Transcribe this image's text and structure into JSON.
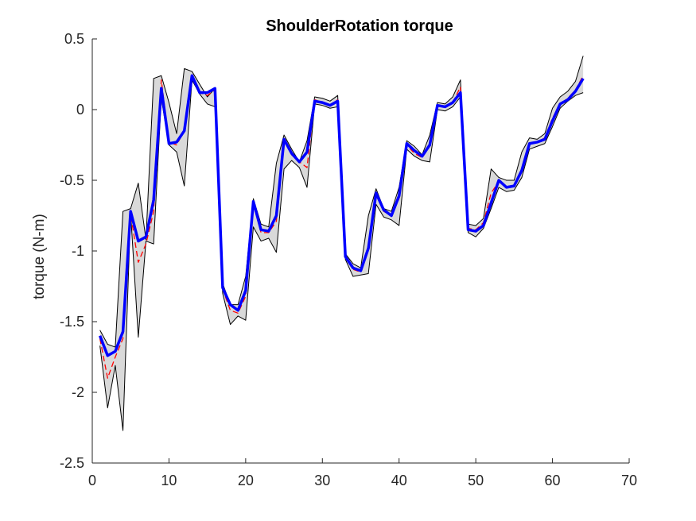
{
  "chart_data": {
    "type": "line",
    "title": "ShoulderRotation torque",
    "xlabel": "",
    "ylabel": "torque (N-m)",
    "xlim": [
      0,
      70
    ],
    "ylim": [
      -2.5,
      0.5
    ],
    "xticks": [
      "0",
      "10",
      "20",
      "30",
      "40",
      "50",
      "60",
      "70"
    ],
    "yticks": [
      "0.5",
      "0",
      "-0.5",
      "-1",
      "-1.5",
      "-2",
      "-2.5"
    ],
    "grid": false,
    "legend": "none",
    "x": [
      1,
      2,
      3,
      4,
      5,
      6,
      7,
      8,
      9,
      10,
      11,
      12,
      13,
      14,
      15,
      16,
      17,
      18,
      19,
      20,
      21,
      22,
      23,
      24,
      25,
      26,
      27,
      28,
      29,
      30,
      31,
      32,
      33,
      34,
      35,
      36,
      37,
      38,
      39,
      40,
      41,
      42,
      43,
      44,
      45,
      46,
      47,
      48,
      49,
      50,
      51,
      52,
      53,
      54,
      55,
      56,
      57,
      58,
      59,
      60,
      61,
      62,
      63,
      64
    ],
    "series": [
      {
        "role": "band-upper",
        "color": "#000000",
        "fill": "#d9d9d9",
        "values": [
          -1.56,
          -1.66,
          -1.68,
          -0.72,
          -0.7,
          -0.52,
          -0.92,
          0.22,
          0.24,
          0.05,
          -0.17,
          0.29,
          0.27,
          0.18,
          0.09,
          0.15,
          -1.23,
          -1.38,
          -1.38,
          -1.18,
          -0.63,
          -0.81,
          -0.83,
          -0.38,
          -0.18,
          -0.28,
          -0.37,
          -0.22,
          0.09,
          0.08,
          0.06,
          0.1,
          -1.02,
          -1.09,
          -1.12,
          -0.75,
          -0.56,
          -0.7,
          -0.72,
          -0.55,
          -0.22,
          -0.26,
          -0.32,
          -0.18,
          0.05,
          0.04,
          0.09,
          0.21,
          -0.81,
          -0.82,
          -0.77,
          -0.42,
          -0.48,
          -0.5,
          -0.5,
          -0.3,
          -0.2,
          -0.21,
          -0.17,
          0.01,
          0.09,
          0.13,
          0.2,
          0.38
        ]
      },
      {
        "role": "band-lower",
        "color": "#000000",
        "values": [
          -1.67,
          -2.11,
          -1.81,
          -2.27,
          -0.73,
          -1.61,
          -0.93,
          -0.95,
          0.08,
          -0.25,
          -0.3,
          -0.54,
          0.21,
          0.11,
          0.04,
          0.02,
          -1.3,
          -1.52,
          -1.46,
          -1.49,
          -0.83,
          -0.93,
          -0.91,
          -1.01,
          -0.42,
          -0.36,
          -0.41,
          -0.55,
          0.04,
          0.03,
          0.01,
          0.02,
          -1.06,
          -1.18,
          -1.17,
          -1.16,
          -0.67,
          -0.76,
          -0.78,
          -0.82,
          -0.28,
          -0.33,
          -0.36,
          -0.37,
          0.0,
          -0.01,
          0.02,
          0.09,
          -0.87,
          -0.9,
          -0.84,
          -0.7,
          -0.55,
          -0.58,
          -0.57,
          -0.48,
          -0.28,
          -0.26,
          -0.24,
          -0.12,
          0.01,
          0.06,
          0.1,
          0.12
        ]
      },
      {
        "role": "dashed",
        "color": "#ff0000",
        "values": [
          -1.62,
          -1.9,
          -1.75,
          -1.62,
          -0.74,
          -1.08,
          -0.95,
          -0.72,
          0.21,
          -0.23,
          -0.25,
          -0.15,
          0.25,
          0.12,
          0.1,
          0.14,
          -1.27,
          -1.42,
          -1.44,
          -1.32,
          -0.67,
          -0.87,
          -0.87,
          -0.79,
          -0.22,
          -0.32,
          -0.37,
          -0.41,
          0.07,
          0.05,
          0.03,
          0.07,
          -1.05,
          -1.13,
          -1.15,
          -0.97,
          -0.6,
          -0.72,
          -0.75,
          -0.63,
          -0.25,
          -0.31,
          -0.34,
          -0.26,
          0.03,
          0.02,
          0.05,
          0.16,
          -0.84,
          -0.85,
          -0.8,
          -0.59,
          -0.51,
          -0.55,
          -0.54,
          -0.42,
          -0.24,
          -0.23,
          -0.2,
          -0.06,
          0.04,
          0.08,
          0.14,
          0.24
        ]
      },
      {
        "role": "mean",
        "color": "#0000ff",
        "values": [
          -1.6,
          -1.74,
          -1.71,
          -1.57,
          -0.72,
          -0.93,
          -0.9,
          -0.64,
          0.15,
          -0.24,
          -0.23,
          -0.15,
          0.24,
          0.12,
          0.12,
          0.15,
          -1.26,
          -1.38,
          -1.42,
          -1.28,
          -0.65,
          -0.85,
          -0.86,
          -0.75,
          -0.21,
          -0.31,
          -0.37,
          -0.3,
          0.06,
          0.05,
          0.03,
          0.06,
          -1.04,
          -1.12,
          -1.14,
          -0.98,
          -0.59,
          -0.71,
          -0.75,
          -0.61,
          -0.24,
          -0.29,
          -0.33,
          -0.25,
          0.03,
          0.02,
          0.05,
          0.12,
          -0.85,
          -0.86,
          -0.82,
          -0.66,
          -0.5,
          -0.55,
          -0.54,
          -0.43,
          -0.24,
          -0.23,
          -0.21,
          -0.08,
          0.04,
          0.07,
          0.13,
          0.22
        ]
      }
    ]
  }
}
